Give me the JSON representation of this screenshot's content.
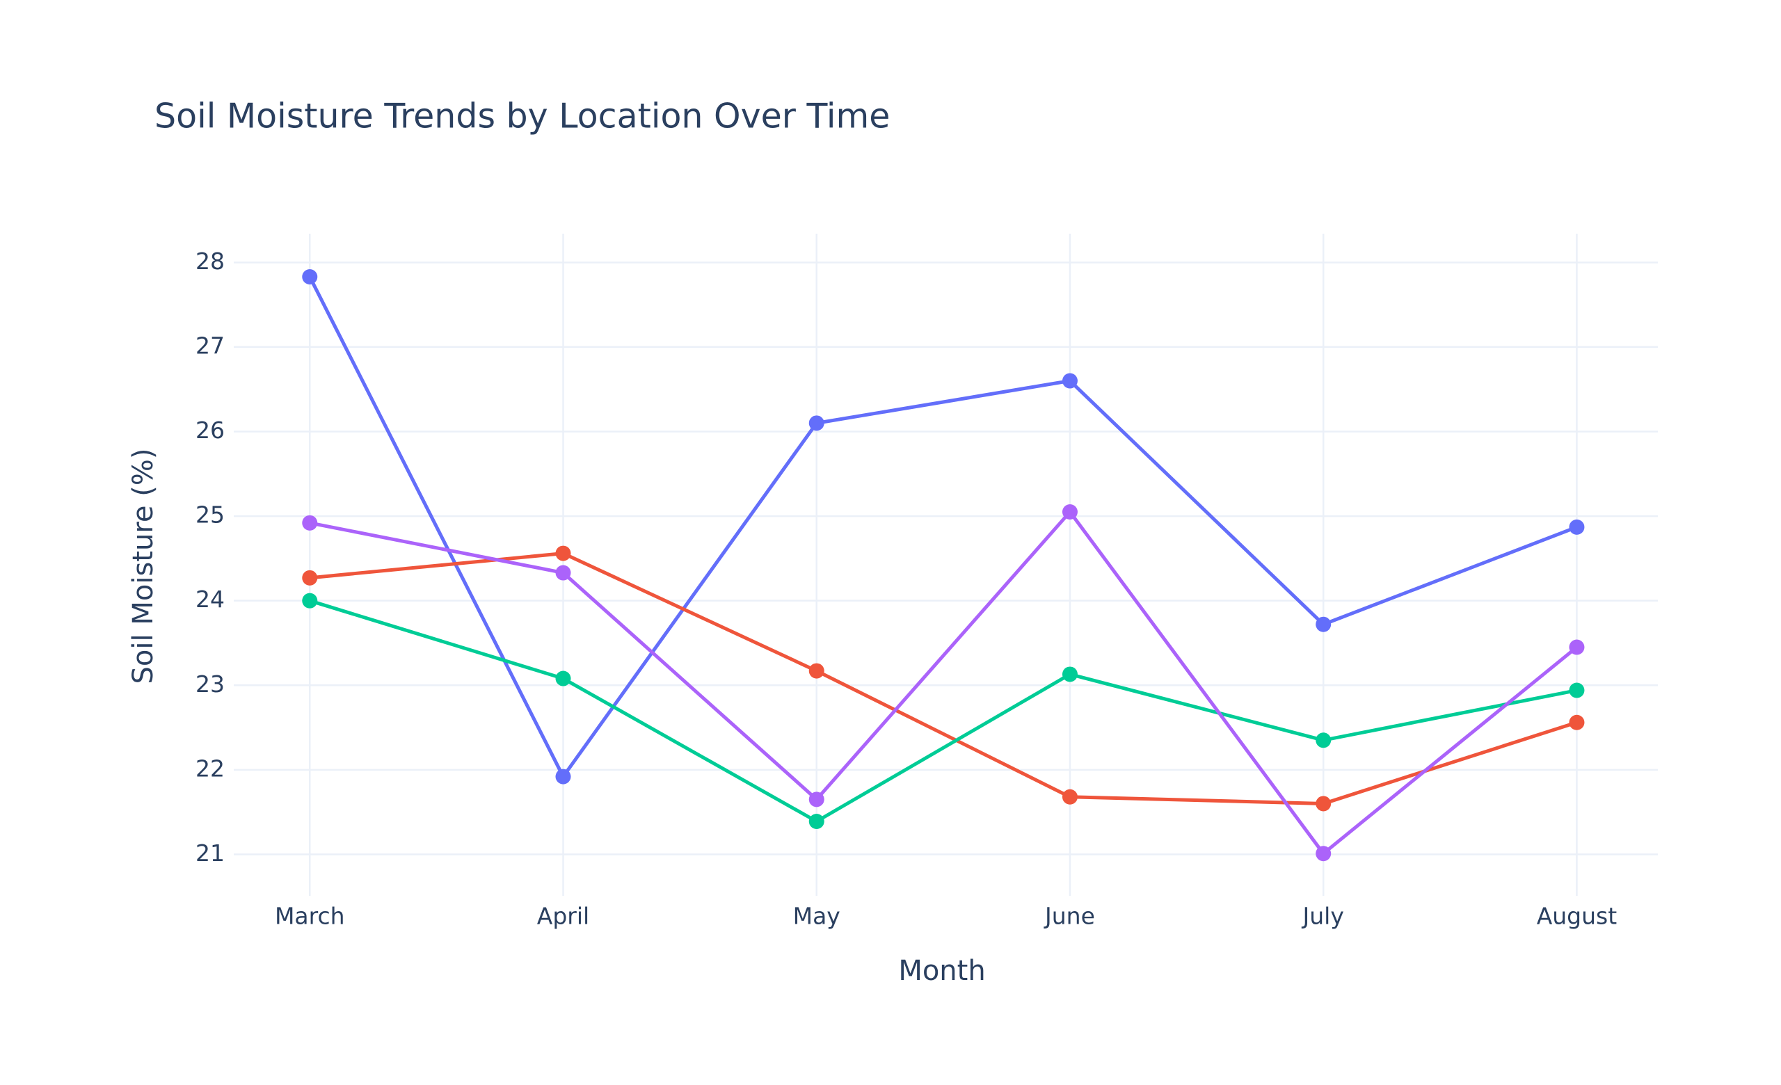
{
  "chart_data": {
    "type": "line",
    "title": "Soil Moisture Trends by Location Over Time",
    "x_label": "Month",
    "y_label": "Soil Moisture (%)",
    "categories": [
      "March",
      "April",
      "May",
      "June",
      "July",
      "August"
    ],
    "series": [
      {
        "color": "#636efa",
        "values": [
          27.83,
          21.92,
          26.1,
          26.6,
          23.72,
          24.87
        ]
      },
      {
        "color": "#ef553b",
        "values": [
          24.27,
          24.56,
          23.17,
          21.68,
          21.6,
          22.56
        ]
      },
      {
        "color": "#00cc96",
        "values": [
          24.0,
          23.08,
          21.39,
          23.13,
          22.35,
          22.94
        ]
      },
      {
        "color": "#ab63fa",
        "values": [
          24.92,
          24.33,
          21.65,
          25.05,
          21.01,
          23.45
        ]
      }
    ],
    "ylim": [
      20.51,
      28.34
    ],
    "yticks": [
      21,
      22,
      23,
      24,
      25,
      26,
      27,
      28
    ],
    "grid": true
  }
}
